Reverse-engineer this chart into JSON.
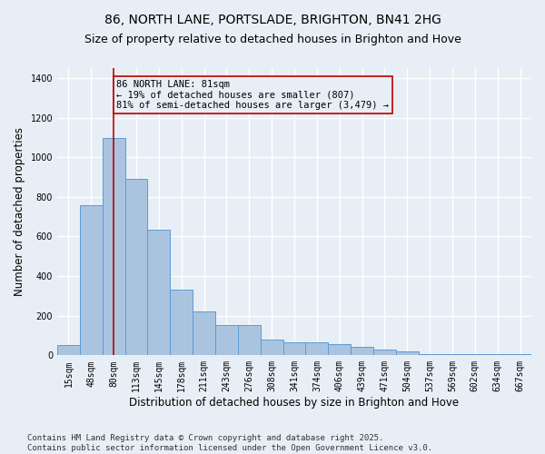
{
  "title": "86, NORTH LANE, PORTSLADE, BRIGHTON, BN41 2HG",
  "subtitle": "Size of property relative to detached houses in Brighton and Hove",
  "xlabel": "Distribution of detached houses by size in Brighton and Hove",
  "ylabel": "Number of detached properties",
  "categories": [
    "15sqm",
    "48sqm",
    "80sqm",
    "113sqm",
    "145sqm",
    "178sqm",
    "211sqm",
    "243sqm",
    "276sqm",
    "308sqm",
    "341sqm",
    "374sqm",
    "406sqm",
    "439sqm",
    "471sqm",
    "504sqm",
    "537sqm",
    "569sqm",
    "602sqm",
    "634sqm",
    "667sqm"
  ],
  "values": [
    50,
    760,
    1095,
    890,
    635,
    330,
    220,
    155,
    155,
    80,
    65,
    65,
    55,
    45,
    30,
    18,
    5,
    5,
    5,
    5,
    5
  ],
  "bar_color": "#aac4e0",
  "bar_edge_color": "#5b9bd5",
  "bg_color": "#e8eef5",
  "grid_color": "#ffffff",
  "vline_x_index": 2,
  "vline_color": "#bb0000",
  "annotation_text": "86 NORTH LANE: 81sqm\n← 19% of detached houses are smaller (807)\n81% of semi-detached houses are larger (3,479) →",
  "annotation_box_color": "#bb0000",
  "ylim": [
    0,
    1450
  ],
  "yticks": [
    0,
    200,
    400,
    600,
    800,
    1000,
    1200,
    1400
  ],
  "footer": "Contains HM Land Registry data © Crown copyright and database right 2025.\nContains public sector information licensed under the Open Government Licence v3.0.",
  "title_fontsize": 10,
  "subtitle_fontsize": 9,
  "axis_label_fontsize": 8.5,
  "tick_fontsize": 7,
  "annotation_fontsize": 7.5,
  "footer_fontsize": 6.5
}
